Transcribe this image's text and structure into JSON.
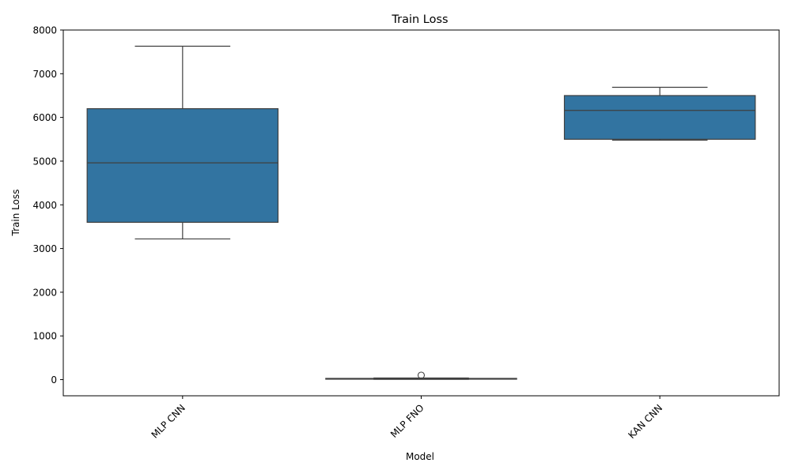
{
  "chart_data": {
    "type": "box",
    "title": "Train Loss",
    "xlabel": "Model",
    "ylabel": "Train Loss",
    "ylim": [
      -370,
      8000
    ],
    "yticks": [
      0,
      1000,
      2000,
      3000,
      4000,
      5000,
      6000,
      7000,
      8000
    ],
    "categories": [
      "MLP CNN",
      "MLP FNO",
      "KAN CNN"
    ],
    "x_tick_rotation_deg": 45,
    "grid": false,
    "legend": "none",
    "box_color": "#3274a1",
    "edge_color": "#3f3f3f",
    "boxes": [
      {
        "category": "MLP CNN",
        "whisker_low": 3220,
        "q1": 3600,
        "median": 4960,
        "q3": 6200,
        "whisker_high": 7630,
        "outliers": []
      },
      {
        "category": "MLP FNO",
        "whisker_low": 8,
        "q1": 12,
        "median": 18,
        "q3": 28,
        "whisker_high": 38,
        "outliers": [
          100
        ]
      },
      {
        "category": "KAN CNN",
        "whisker_low": 5480,
        "q1": 5500,
        "median": 6160,
        "q3": 6500,
        "whisker_high": 6690,
        "outliers": []
      }
    ]
  }
}
